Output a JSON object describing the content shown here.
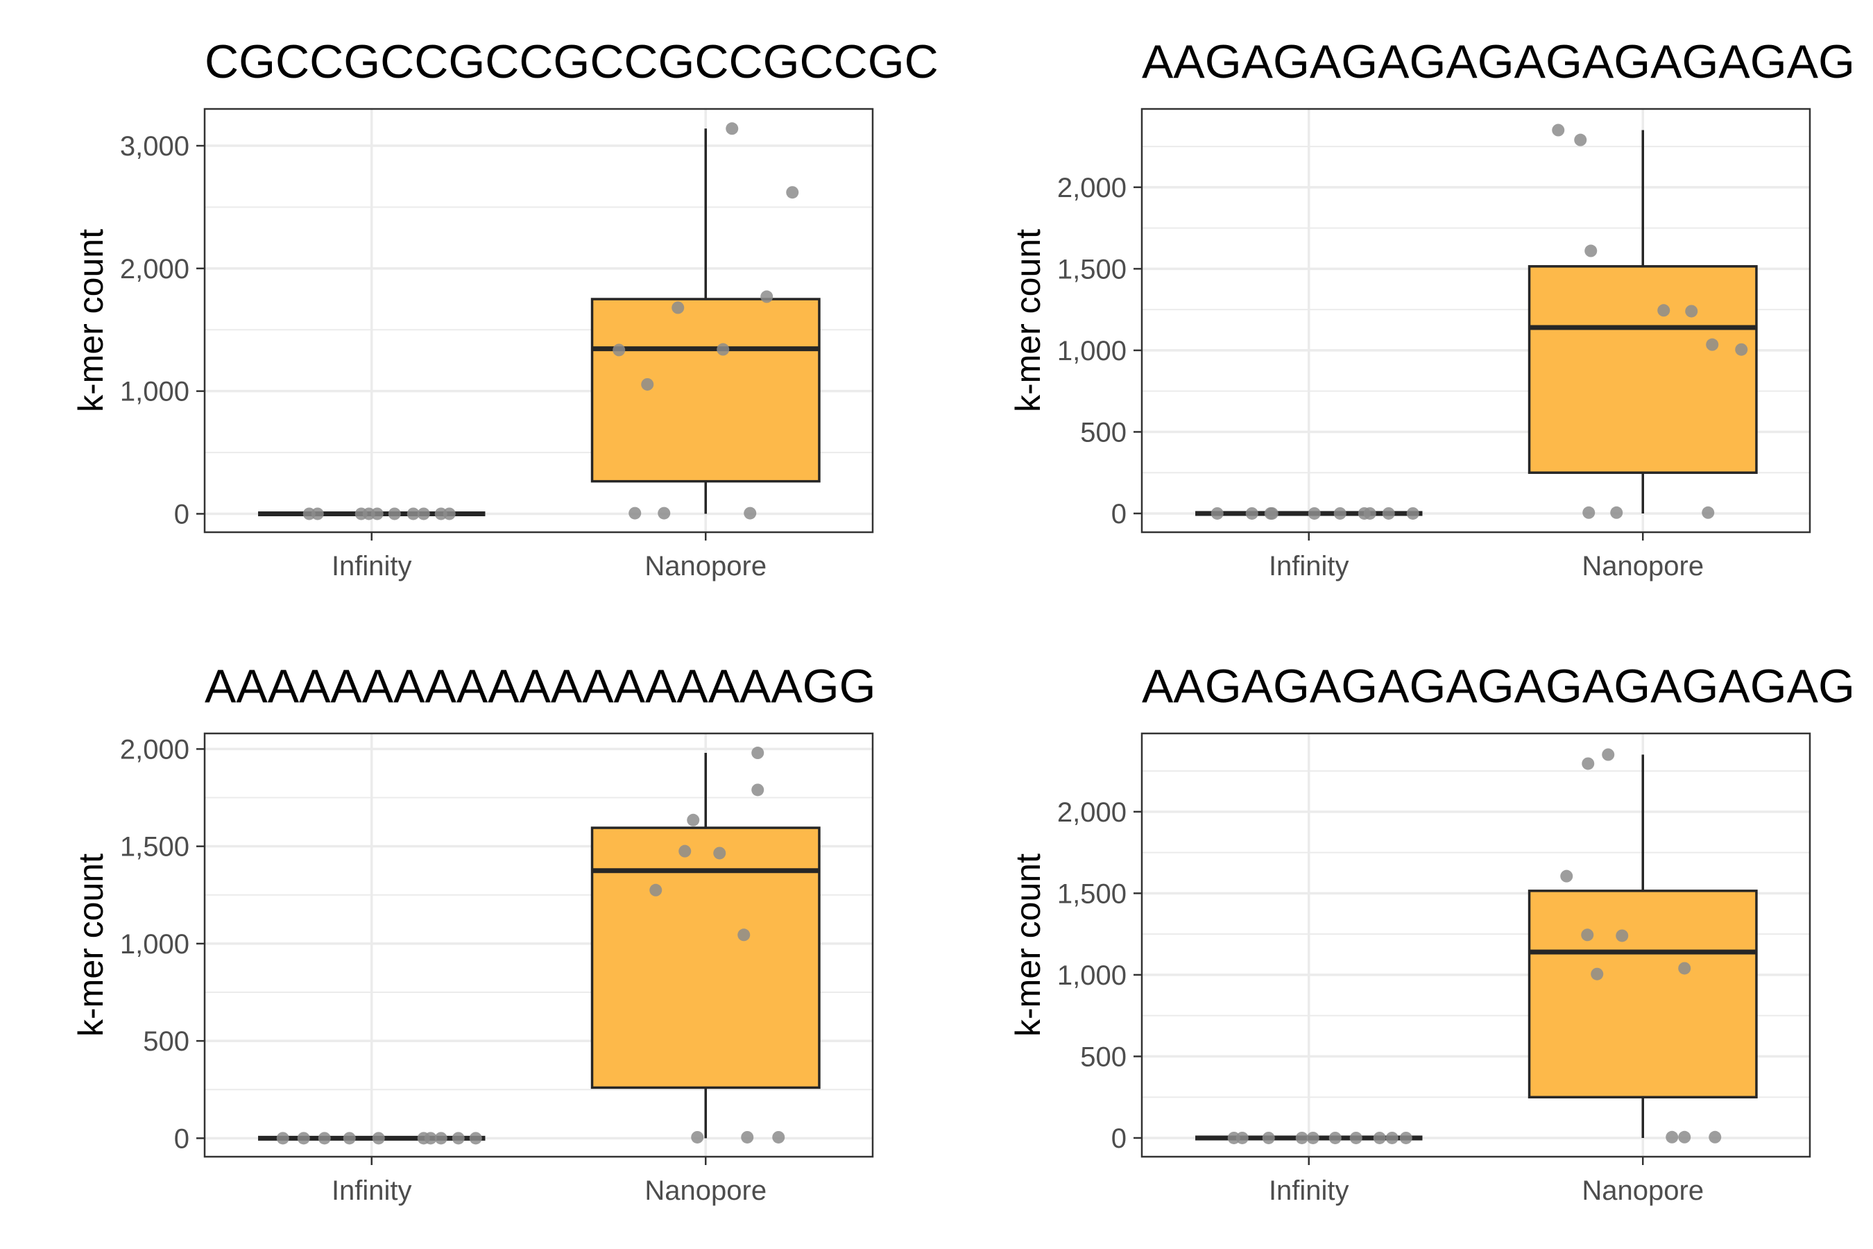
{
  "figure": {
    "box_fill": "#fdb94a",
    "point_color": "#8c8c8c",
    "line_color": "#262626",
    "grid_color": "#ebebeb",
    "panel_border": "#333333"
  },
  "chart_data": [
    {
      "type": "box",
      "title": "CGCCGCCGCCGCCGCCGCCGC",
      "xlabel": "",
      "ylabel": "k-mer count",
      "ylim": [
        -150,
        3300
      ],
      "yticks": [
        0,
        1000,
        2000,
        3000
      ],
      "ytick_labels": [
        "0",
        "1,000",
        "2,000",
        "3,000"
      ],
      "categories": [
        "Infinity",
        "Nanopore"
      ],
      "grid": true,
      "legend": "none",
      "boxes": [
        {
          "category": "Infinity",
          "min": 0,
          "q1": 0,
          "median": 0,
          "q3": 0,
          "max": 0,
          "points": [
            0,
            0,
            0,
            0,
            0,
            0,
            0,
            0,
            0,
            0
          ]
        },
        {
          "category": "Nanopore",
          "min": 0,
          "q1": 265,
          "median": 1345,
          "q3": 1750,
          "max": 3140,
          "points": [
            3140,
            2620,
            1770,
            1680,
            1340,
            1335,
            1055,
            5,
            5,
            5
          ]
        }
      ]
    },
    {
      "type": "box",
      "title": "AAGAGAGAGAGAGAGAGAGAG",
      "xlabel": "",
      "ylabel": "k-mer count",
      "ylim": [
        -115,
        2480
      ],
      "yticks": [
        0,
        500,
        1000,
        1500,
        2000
      ],
      "ytick_labels": [
        "0",
        "500",
        "1,000",
        "1,500",
        "2,000"
      ],
      "categories": [
        "Infinity",
        "Nanopore"
      ],
      "grid": true,
      "legend": "none",
      "boxes": [
        {
          "category": "Infinity",
          "min": 0,
          "q1": 0,
          "median": 0,
          "q3": 0,
          "max": 0,
          "points": [
            0,
            0,
            0,
            0,
            0,
            0,
            0,
            0,
            0,
            0
          ]
        },
        {
          "category": "Nanopore",
          "min": 0,
          "q1": 250,
          "median": 1140,
          "q3": 1515,
          "max": 2350,
          "points": [
            2350,
            2290,
            1610,
            1245,
            1240,
            1035,
            1005,
            5,
            5,
            5
          ]
        }
      ]
    },
    {
      "type": "box",
      "title": "AAAAAAAAAAAAAAAAAAAGG",
      "xlabel": "",
      "ylabel": "k-mer count",
      "ylim": [
        -95,
        2080
      ],
      "yticks": [
        0,
        500,
        1000,
        1500,
        2000
      ],
      "ytick_labels": [
        "0",
        "500",
        "1,000",
        "1,500",
        "2,000"
      ],
      "categories": [
        "Infinity",
        "Nanopore"
      ],
      "grid": true,
      "legend": "none",
      "boxes": [
        {
          "category": "Infinity",
          "min": 0,
          "q1": 0,
          "median": 0,
          "q3": 0,
          "max": 0,
          "points": [
            0,
            0,
            0,
            0,
            0,
            0,
            0,
            0,
            0,
            0
          ]
        },
        {
          "category": "Nanopore",
          "min": 0,
          "q1": 260,
          "median": 1375,
          "q3": 1595,
          "max": 1980,
          "points": [
            1980,
            1790,
            1635,
            1475,
            1465,
            1275,
            1045,
            5,
            5,
            5
          ]
        }
      ]
    },
    {
      "type": "box",
      "title": "AAGAGAGAGAGAGAGAGAGAG",
      "xlabel": "",
      "ylabel": "k-mer count",
      "ylim": [
        -115,
        2480
      ],
      "yticks": [
        0,
        500,
        1000,
        1500,
        2000
      ],
      "ytick_labels": [
        "0",
        "500",
        "1,000",
        "1,500",
        "2,000"
      ],
      "categories": [
        "Infinity",
        "Nanopore"
      ],
      "grid": true,
      "legend": "none",
      "boxes": [
        {
          "category": "Infinity",
          "min": 0,
          "q1": 0,
          "median": 0,
          "q3": 0,
          "max": 0,
          "points": [
            0,
            0,
            0,
            0,
            0,
            0,
            0,
            0,
            0,
            0
          ]
        },
        {
          "category": "Nanopore",
          "min": 0,
          "q1": 250,
          "median": 1140,
          "q3": 1515,
          "max": 2350,
          "points": [
            2350,
            2295,
            1605,
            1245,
            1240,
            1040,
            1005,
            5,
            5,
            5
          ]
        }
      ]
    }
  ]
}
